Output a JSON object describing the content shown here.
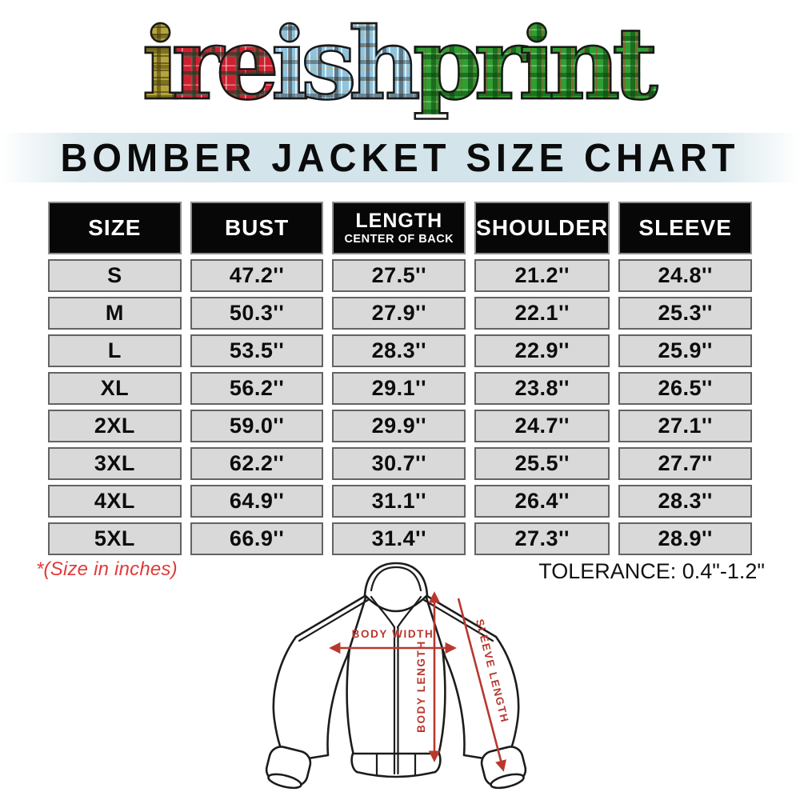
{
  "logo": {
    "text": "ireishprint",
    "segments": [
      {
        "text": "i",
        "tartan": "gold"
      },
      {
        "text": "re",
        "tartan": "red"
      },
      {
        "text": "ish",
        "tartan": "blue"
      },
      {
        "text": "print",
        "tartan": "green"
      }
    ],
    "tartan_colors": {
      "gold": "#b5a43c",
      "red": "#cf2030",
      "blue": "#8fc4e0",
      "green": "#2f9e33"
    }
  },
  "banner": {
    "title": "BOMBER JACKET SIZE CHART",
    "background": "#d3e4ea"
  },
  "table": {
    "headers": [
      {
        "label": "SIZE",
        "sub": ""
      },
      {
        "label": "BUST",
        "sub": ""
      },
      {
        "label": "LENGTH",
        "sub": "CENTER OF BACK"
      },
      {
        "label": "SHOULDER",
        "sub": ""
      },
      {
        "label": "SLEEVE",
        "sub": ""
      }
    ],
    "rows": [
      {
        "size": "S",
        "bust": "47.2''",
        "length": "27.5''",
        "shoulder": "21.2''",
        "sleeve": "24.8''"
      },
      {
        "size": "M",
        "bust": "50.3''",
        "length": "27.9''",
        "shoulder": "22.1''",
        "sleeve": "25.3''"
      },
      {
        "size": "L",
        "bust": "53.5''",
        "length": "28.3''",
        "shoulder": "22.9''",
        "sleeve": "25.9''"
      },
      {
        "size": "XL",
        "bust": "56.2''",
        "length": "29.1''",
        "shoulder": "23.8''",
        "sleeve": "26.5''"
      },
      {
        "size": "2XL",
        "bust": "59.0''",
        "length": "29.9''",
        "shoulder": "24.7''",
        "sleeve": "27.1''"
      },
      {
        "size": "3XL",
        "bust": "62.2''",
        "length": "30.7''",
        "shoulder": "25.5''",
        "sleeve": "27.7''"
      },
      {
        "size": "4XL",
        "bust": "64.9''",
        "length": "31.1''",
        "shoulder": "26.4''",
        "sleeve": "28.3''"
      },
      {
        "size": "5XL",
        "bust": "66.9''",
        "length": "31.4''",
        "shoulder": "27.3''",
        "sleeve": "28.9''"
      }
    ],
    "cell_background": "#d9d9d9",
    "header_background": "#070707"
  },
  "notes": {
    "size_note": "*(Size in inches)",
    "size_note_color": "#e23a3a",
    "tolerance": "TOLERANCE: 0.4\"-1.2\""
  },
  "diagram": {
    "body_width_label": "BODY WIDTH",
    "body_length_label": "BODY LENGTH",
    "sleeve_length_label": "SLEEVE LENGTH",
    "arrow_color": "#b8382e"
  }
}
